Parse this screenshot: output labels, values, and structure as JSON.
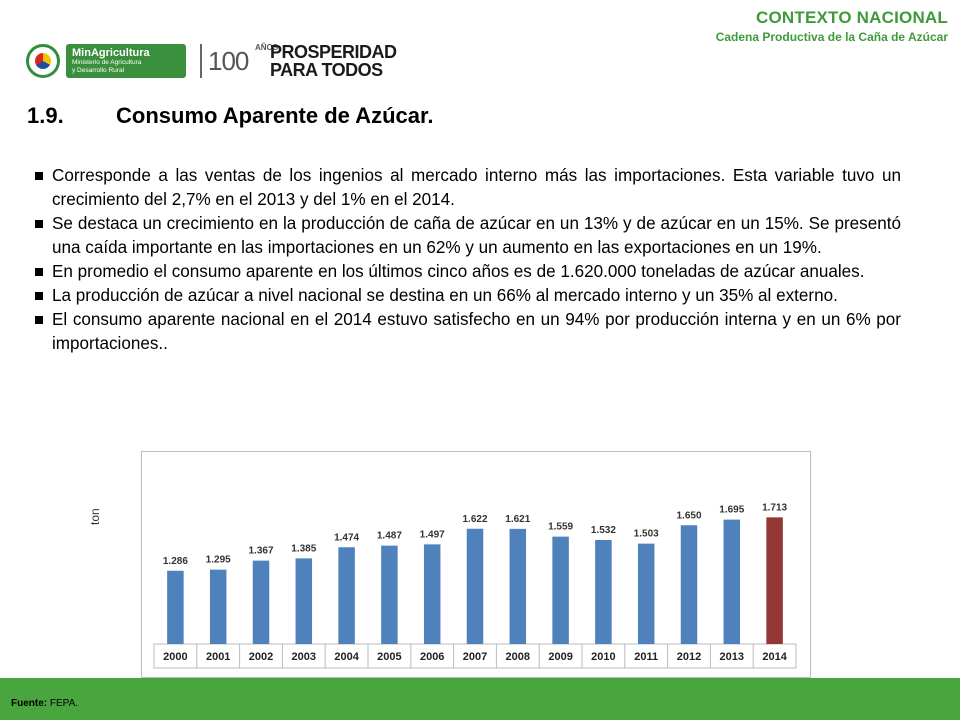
{
  "header": {
    "title": "CONTEXTO NACIONAL",
    "subtitle": "Cadena Productiva de la Caña de Azúcar"
  },
  "logos": {
    "ministry_name": "MinAgricultura",
    "ministry_line1": "Ministerio de Agricultura",
    "ministry_line2": "y Desarrollo Rural",
    "hundred": "100",
    "anos": "AÑOS",
    "slogan_line1": "PROSPERIDAD",
    "slogan_line2": "PARA TODOS"
  },
  "section": {
    "number": "1.9.",
    "title": "Consumo Aparente de Azúcar."
  },
  "bullets": [
    "Corresponde a las ventas de los ingenios al mercado interno más las importaciones. Esta variable tuvo un crecimiento del 2,7% en el 2013 y del 1% en el 2014.",
    "Se destaca un crecimiento en la producción de caña de azúcar en un 13% y de azúcar en un 15%.  Se presentó una caída importante en las importaciones en un 62% y un aumento en las exportaciones en un 19%.",
    "En promedio el consumo aparente en los últimos cinco años es de 1.620.000 toneladas de azúcar anuales.",
    "La producción de azúcar a nivel nacional se destina en un 66% al mercado interno y un 35% al externo.",
    "El consumo aparente nacional en el 2014 estuvo satisfecho en un 94% por producción interna y en un 6% por importaciones.."
  ],
  "chart_unit": "ton",
  "chart_data": {
    "type": "bar",
    "categories": [
      "2000",
      "2001",
      "2002",
      "2003",
      "2004",
      "2005",
      "2006",
      "2007",
      "2008",
      "2009",
      "2010",
      "2011",
      "2012",
      "2013",
      "2014"
    ],
    "values": [
      1286,
      1295,
      1367,
      1385,
      1474,
      1487,
      1497,
      1622,
      1621,
      1559,
      1532,
      1503,
      1650,
      1695,
      1713
    ],
    "data_labels": [
      "1.286",
      "1.295",
      "1.367",
      "1.385",
      "1.474",
      "1.487",
      "1.497",
      "1.622",
      "1.621",
      "1.559",
      "1.532",
      "1.503",
      "1.650",
      "1.695",
      "1.713"
    ],
    "colors": [
      "#4f81bd",
      "#4f81bd",
      "#4f81bd",
      "#4f81bd",
      "#4f81bd",
      "#4f81bd",
      "#4f81bd",
      "#4f81bd",
      "#4f81bd",
      "#4f81bd",
      "#4f81bd",
      "#4f81bd",
      "#4f81bd",
      "#4f81bd",
      "#953735"
    ],
    "title": "",
    "xlabel": "",
    "ylabel": "ton",
    "grid": false,
    "legend": "none"
  },
  "footer": {
    "source_label": "Fuente:",
    "source_value": "FEPA."
  },
  "colors": {
    "accent_green": "#3e9a3a",
    "footer_green": "#49a53e",
    "bar_blue": "#4f81bd",
    "bar_red": "#953735"
  }
}
